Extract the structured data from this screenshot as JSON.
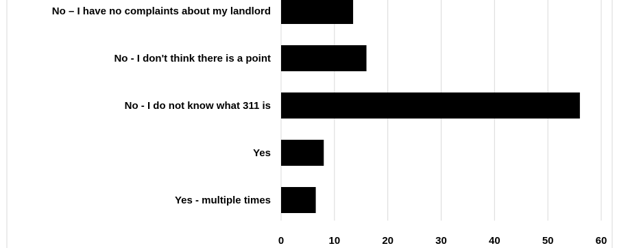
{
  "chart_data": {
    "type": "bar",
    "orientation": "horizontal",
    "categories": [
      "No – I have no complaints about my landlord",
      "No - I don't think there is a point",
      "No - I do not know what 311 is",
      "Yes",
      "Yes - multiple times"
    ],
    "values": [
      13.5,
      16,
      56,
      8,
      6.5
    ],
    "x_ticks": [
      "0",
      "10",
      "20",
      "30",
      "40",
      "50",
      "60"
    ],
    "xlim": [
      0,
      60
    ],
    "title": "",
    "xlabel": "",
    "ylabel": "",
    "grid": true,
    "bar_color": "#000000",
    "grid_color": "#d9d9d9"
  }
}
